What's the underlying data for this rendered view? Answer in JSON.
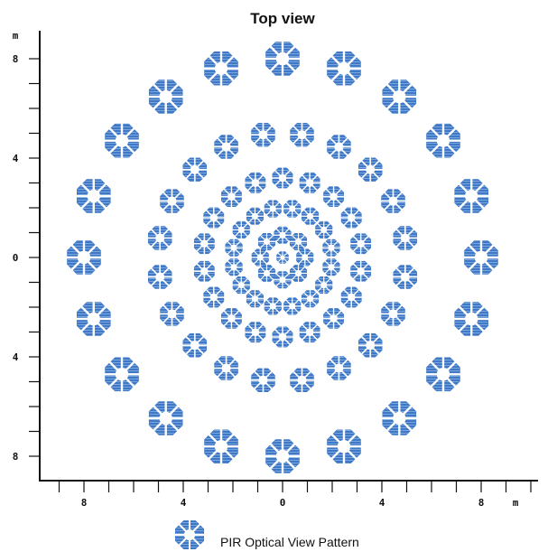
{
  "title": "Top view",
  "y_unit": "m",
  "x_unit": "m",
  "y_tick_labels": [
    "8",
    "4",
    "0",
    "4",
    "8"
  ],
  "x_tick_labels": [
    "8",
    "4",
    "0",
    "4",
    "8"
  ],
  "legend": {
    "label": "PIR Optical View Pattern",
    "icon": "octagon-zone-icon"
  },
  "colors": {
    "zone": "#3f78c6",
    "zone_light": "#7aa6dc",
    "axis": "#111111"
  },
  "zones": {
    "units": "m",
    "rings": [
      {
        "radius_m": 8.0,
        "count": 20,
        "size": "large"
      },
      {
        "radius_m": 5.0,
        "count": 20,
        "size": "medium"
      },
      {
        "radius_m": 3.2,
        "count": 18,
        "size": "medium-small"
      },
      {
        "radius_m": 2.0,
        "count": 16,
        "size": "small"
      },
      {
        "radius_m": 0.9,
        "count": 8,
        "size": "small"
      }
    ]
  }
}
